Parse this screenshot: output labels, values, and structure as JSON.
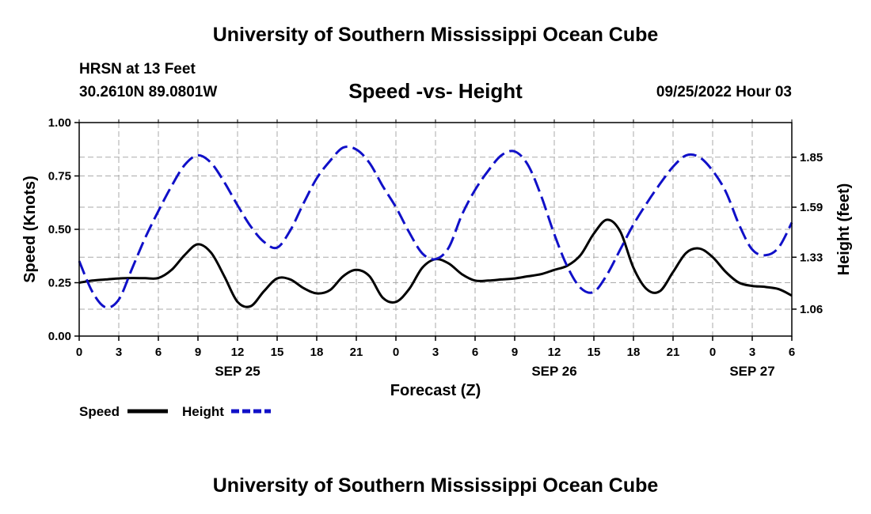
{
  "header": {
    "title": "University of Southern Mississippi Ocean Cube",
    "station": "HRSN at 13 Feet",
    "coords": "30.2610N  89.0801W",
    "subtitle": "Speed -vs- Height",
    "datetime": "09/25/2022 Hour 03"
  },
  "footer": {
    "title": "University of Southern Mississippi Ocean Cube"
  },
  "chart_data": {
    "type": "line",
    "xlabel": "Forecast (Z)",
    "ylabel": "Speed (Knots)",
    "y2label": "Height (feet)",
    "xlim": [
      0,
      54
    ],
    "ylim": [
      0,
      1.0
    ],
    "y2lim": [
      0.92,
      2.03
    ],
    "x_ticks": [
      0,
      3,
      6,
      9,
      12,
      15,
      18,
      21,
      24,
      27,
      30,
      33,
      36,
      39,
      42,
      45,
      48,
      51,
      54
    ],
    "x_tick_labels": [
      "0",
      "3",
      "6",
      "9",
      "12",
      "15",
      "18",
      "21",
      "0",
      "3",
      "6",
      "9",
      "12",
      "15",
      "18",
      "21",
      "0",
      "3",
      "6"
    ],
    "y_ticks": [
      0,
      0.25,
      0.5,
      0.75,
      1.0
    ],
    "y_tick_labels": [
      "0.00",
      "0.25",
      "0.50",
      "0.75",
      "1.00"
    ],
    "y2_ticks": [
      1.06,
      1.33,
      1.59,
      1.85
    ],
    "y2_tick_labels": [
      "1.06",
      "1.33",
      "1.59",
      "1.85"
    ],
    "date_labels": [
      {
        "label": "SEP 25",
        "x": 12
      },
      {
        "label": "SEP 26",
        "x": 36
      },
      {
        "label": "SEP 27",
        "x": 51
      }
    ],
    "grid": true,
    "legend": "bottom-left",
    "series": [
      {
        "name": "Speed",
        "axis": "left",
        "color": "#000000",
        "style": "solid",
        "x": [
          0,
          1,
          2,
          3,
          4,
          5,
          6,
          7,
          8,
          9,
          10,
          11,
          12,
          13,
          14,
          15,
          16,
          17,
          18,
          19,
          20,
          21,
          22,
          23,
          24,
          25,
          26,
          27,
          28,
          29,
          30,
          31,
          32,
          33,
          34,
          35,
          36,
          37,
          38,
          39,
          40,
          41,
          42,
          43,
          44,
          45,
          46,
          47,
          48,
          49,
          50,
          51,
          52,
          53,
          54
        ],
        "values": [
          0.25,
          0.26,
          0.265,
          0.27,
          0.272,
          0.271,
          0.272,
          0.31,
          0.38,
          0.43,
          0.39,
          0.28,
          0.16,
          0.14,
          0.21,
          0.27,
          0.265,
          0.225,
          0.2,
          0.215,
          0.28,
          0.31,
          0.28,
          0.18,
          0.16,
          0.22,
          0.32,
          0.36,
          0.34,
          0.29,
          0.26,
          0.26,
          0.265,
          0.27,
          0.28,
          0.29,
          0.31,
          0.33,
          0.38,
          0.48,
          0.545,
          0.49,
          0.32,
          0.22,
          0.21,
          0.3,
          0.39,
          0.41,
          0.37,
          0.3,
          0.25,
          0.235,
          0.23,
          0.22,
          0.19
        ]
      },
      {
        "name": "Height",
        "axis": "right",
        "color": "#1010c8",
        "style": "dashed",
        "x": [
          0,
          1,
          2,
          3,
          4,
          5,
          6,
          7,
          8,
          9,
          10,
          11,
          12,
          13,
          14,
          15,
          16,
          17,
          18,
          19,
          20,
          21,
          22,
          23,
          24,
          25,
          26,
          27,
          28,
          29,
          30,
          31,
          32,
          33,
          34,
          35,
          36,
          37,
          38,
          39,
          40,
          41,
          42,
          43,
          44,
          45,
          46,
          47,
          48,
          49,
          50,
          51,
          52,
          53,
          54
        ],
        "values": [
          1.31,
          1.15,
          1.07,
          1.11,
          1.27,
          1.43,
          1.57,
          1.7,
          1.81,
          1.86,
          1.82,
          1.72,
          1.6,
          1.49,
          1.41,
          1.38,
          1.47,
          1.61,
          1.74,
          1.83,
          1.9,
          1.89,
          1.82,
          1.7,
          1.59,
          1.46,
          1.35,
          1.32,
          1.38,
          1.55,
          1.68,
          1.78,
          1.86,
          1.88,
          1.81,
          1.65,
          1.45,
          1.28,
          1.17,
          1.15,
          1.24,
          1.37,
          1.5,
          1.61,
          1.71,
          1.8,
          1.86,
          1.85,
          1.78,
          1.67,
          1.5,
          1.37,
          1.34,
          1.38,
          1.51
        ]
      }
    ]
  }
}
